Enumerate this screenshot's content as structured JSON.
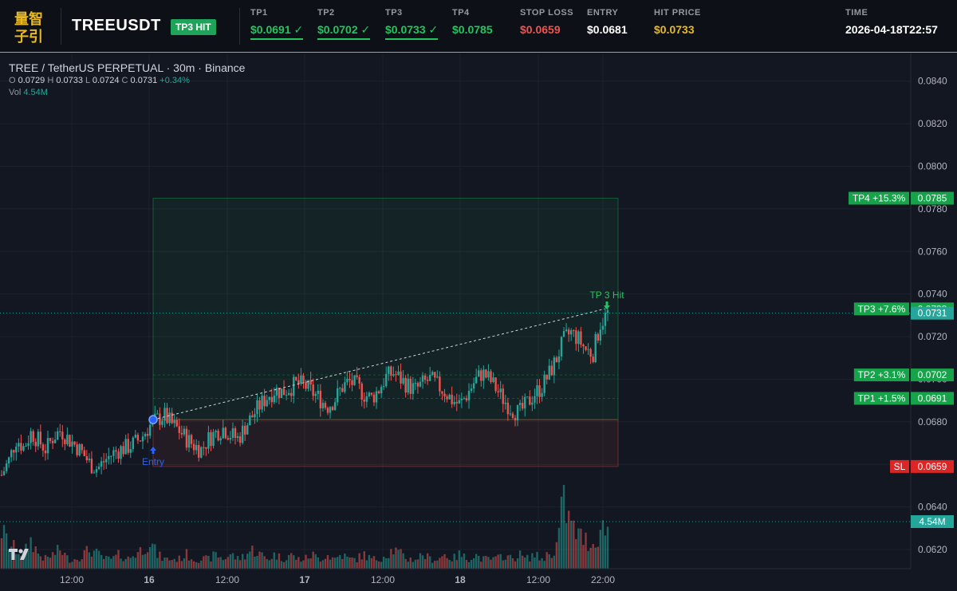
{
  "header": {
    "logo_text": "量智子引",
    "symbol": "TREEUSDT",
    "badge": "TP3 HIT",
    "fields": [
      {
        "label": "TP1",
        "value": "$0.0691 ✓",
        "color": "#22c55e",
        "underline": true
      },
      {
        "label": "TP2",
        "value": "$0.0702 ✓",
        "color": "#22c55e",
        "underline": true
      },
      {
        "label": "TP3",
        "value": "$0.0733 ✓",
        "color": "#22c55e",
        "underline": true
      },
      {
        "label": "TP4",
        "value": "$0.0785",
        "color": "#22c55e",
        "underline": false
      },
      {
        "label": "STOP LOSS",
        "value": "$0.0659",
        "color": "#ef5350",
        "underline": false
      },
      {
        "label": "ENTRY",
        "value": "$0.0681",
        "color": "#ffffff",
        "underline": false
      },
      {
        "label": "HIT PRICE",
        "value": "$0.0733",
        "color": "#e8b923",
        "underline": false
      },
      {
        "label": "TIME",
        "value": "2026-04-18T22:57",
        "color": "#ffffff",
        "underline": false
      }
    ]
  },
  "chart": {
    "title": "TREE / TetherUS PERPETUAL · 30m · Binance",
    "ohlc": {
      "o": "0.0729",
      "h": "0.0733",
      "l": "0.0724",
      "c": "0.0731",
      "chg": "+0.34%"
    },
    "vol_label": "Vol",
    "vol_value": "4.54M",
    "entry_label": "Entry",
    "hit_label": "TP 3 Hit"
  },
  "chart_data": {
    "type": "candlestick",
    "price_axis_ticks": [
      "0.0840",
      "0.0820",
      "0.0800",
      "0.0780",
      "0.0760",
      "0.0740",
      "0.0720",
      "0.0700",
      "0.0680",
      "0.0660",
      "0.0640",
      "0.0620"
    ],
    "time_axis_ticks": [
      "12:00",
      "16",
      "12:00",
      "17",
      "12:00",
      "18",
      "12:00",
      "22:00"
    ],
    "ylim": [
      0.0611,
      0.0853
    ],
    "levels": [
      {
        "label": "TP4 +15.3%",
        "price": 0.0785,
        "price_text": "0.0785",
        "color": "#16a34a"
      },
      {
        "label": "TP3 +7.6%",
        "price": 0.0733,
        "price_text": "0.0733",
        "color": "#16a34a"
      },
      {
        "label": "TP2 +3.1%",
        "price": 0.0702,
        "price_text": "0.0702",
        "color": "#16a34a"
      },
      {
        "label": "TP1 +1.5%",
        "price": 0.0691,
        "price_text": "0.0691",
        "color": "#16a34a"
      },
      {
        "label": "SL",
        "price": 0.0659,
        "price_text": "0.0659",
        "color": "#dc2626"
      }
    ],
    "last_price": {
      "price": 0.0731,
      "text": "0.0731",
      "color": "#26a69a"
    },
    "volume_tag": {
      "text": "4.54M",
      "color": "#26a69a"
    },
    "entry": {
      "price": 0.0681
    },
    "hit": {
      "price": 0.0733
    },
    "close_path": [
      0.0655,
      0.0662,
      0.0672,
      0.0668,
      0.0675,
      0.0671,
      0.0667,
      0.0673,
      0.0676,
      0.0672,
      0.0669,
      0.0665,
      0.066,
      0.0658,
      0.0662,
      0.0665,
      0.0667,
      0.0668,
      0.067,
      0.0673,
      0.0678,
      0.0681,
      0.0683,
      0.0679,
      0.0676,
      0.0672,
      0.0669,
      0.0667,
      0.0672,
      0.0675,
      0.0677,
      0.0674,
      0.0672,
      0.0678,
      0.0683,
      0.0688,
      0.0692,
      0.0695,
      0.0694,
      0.0696,
      0.0698,
      0.0697,
      0.0694,
      0.0691,
      0.0687,
      0.069,
      0.0696,
      0.0699,
      0.0697,
      0.0693,
      0.0691,
      0.0695,
      0.0701,
      0.0703,
      0.07,
      0.0697,
      0.0695,
      0.0698,
      0.07,
      0.0697,
      0.0694,
      0.069,
      0.0688,
      0.0693,
      0.0699,
      0.0703,
      0.07,
      0.0695,
      0.069,
      0.0686,
      0.0684,
      0.0688,
      0.0693,
      0.0696,
      0.0702,
      0.0709,
      0.0718,
      0.0722,
      0.0719,
      0.0714,
      0.0712,
      0.0726,
      0.0731
    ],
    "volume_path": [
      8,
      5,
      4,
      3,
      6,
      3,
      2,
      3,
      4,
      2,
      2,
      3,
      4,
      3,
      2,
      2,
      3,
      2,
      3,
      4,
      6,
      3,
      2,
      2,
      2,
      3,
      2,
      2,
      2,
      3,
      2,
      3,
      2,
      3,
      4,
      3,
      2,
      3,
      2,
      3,
      2,
      2,
      3,
      2,
      3,
      2,
      3,
      2,
      2,
      3,
      2,
      2,
      3,
      4,
      3,
      2,
      2,
      3,
      2,
      2,
      3,
      2,
      3,
      2,
      3,
      2,
      2,
      2,
      3,
      2,
      3,
      2,
      3,
      2,
      3,
      4,
      14,
      9,
      7,
      6,
      5,
      8,
      9
    ]
  }
}
